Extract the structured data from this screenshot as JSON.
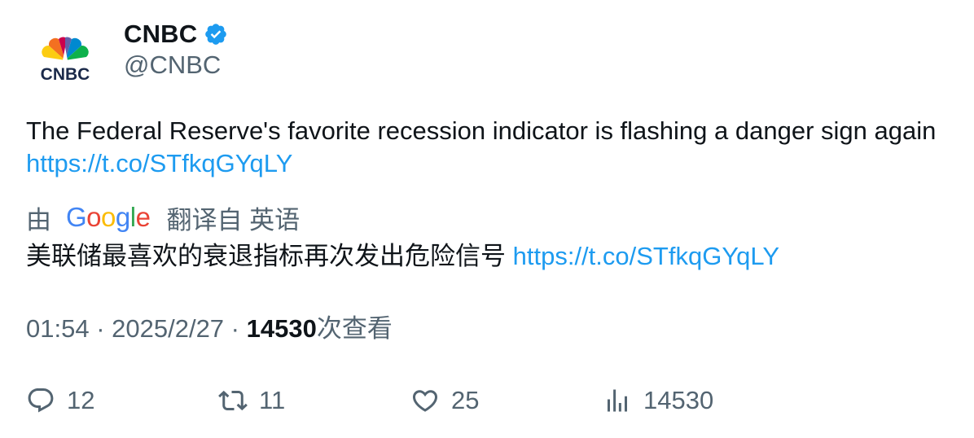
{
  "author": {
    "display_name": "CNBC",
    "handle": "@CNBC",
    "avatar_text": "CNBC",
    "verified_color": "#1d9bf0"
  },
  "tweet": {
    "text": "The Federal Reserve's favorite recession indicator is flashing a danger sign again ",
    "link": "https://t.co/STfkqGYqLY"
  },
  "translation": {
    "prefix": "由",
    "provider": "Google",
    "suffix": "翻译自 英语",
    "text": "美联储最喜欢的衰退指标再次发出危险信号 ",
    "link": "https://t.co/STfkqGYqLY"
  },
  "meta": {
    "time": "01:54",
    "date": "2025/2/27",
    "views_count": "14530",
    "views_label": "次查看"
  },
  "actions": {
    "replies": "12",
    "retweets": "11",
    "likes": "25",
    "views": "14530"
  },
  "colors": {
    "link": "#1d9bf0",
    "secondary_text": "#536471",
    "primary_text": "#0f1419"
  }
}
